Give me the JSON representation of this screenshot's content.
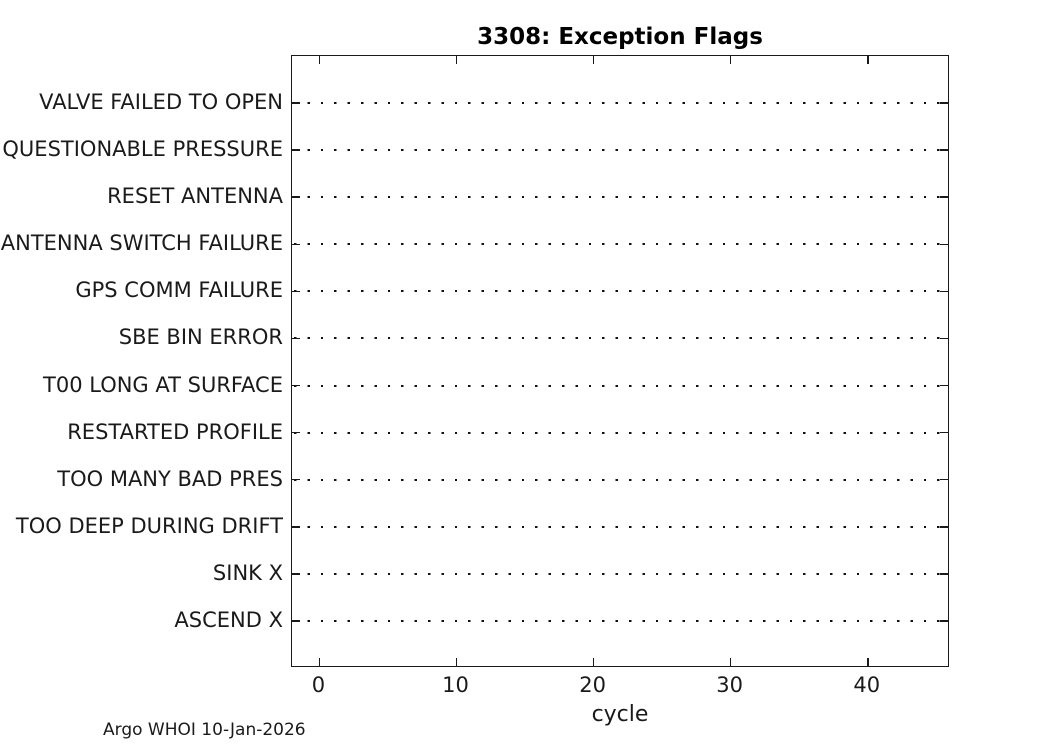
{
  "chart_data": {
    "type": "scatter",
    "title": "3308: Exception Flags",
    "xlabel": "cycle",
    "ylabel": "",
    "categories": [
      "VALVE FAILED TO OPEN",
      "QUESTIONABLE PRESSURE",
      "RESET ANTENNA",
      "ANTENNA SWITCH FAILURE",
      "GPS COMM FAILURE",
      "SBE BIN ERROR",
      "T00 LONG AT SURFACE",
      "RESTARTED PROFILE",
      "TOO MANY BAD PRES",
      "TOO DEEP DURING DRIFT",
      "SINK X",
      "ASCEND X"
    ],
    "series": [],
    "points": [],
    "xlim": [
      -2,
      46
    ],
    "xticks": [
      0,
      10,
      20,
      30,
      40
    ],
    "grid": "horizontal dotted gridline per category row",
    "legend": "none",
    "annotation": "Argo WHOI 10-Jan-2026",
    "colors": {
      "axis": "#1a1a1a",
      "text": "#1a1a1a",
      "gridline": "#111111",
      "background": "#ffffff"
    }
  }
}
